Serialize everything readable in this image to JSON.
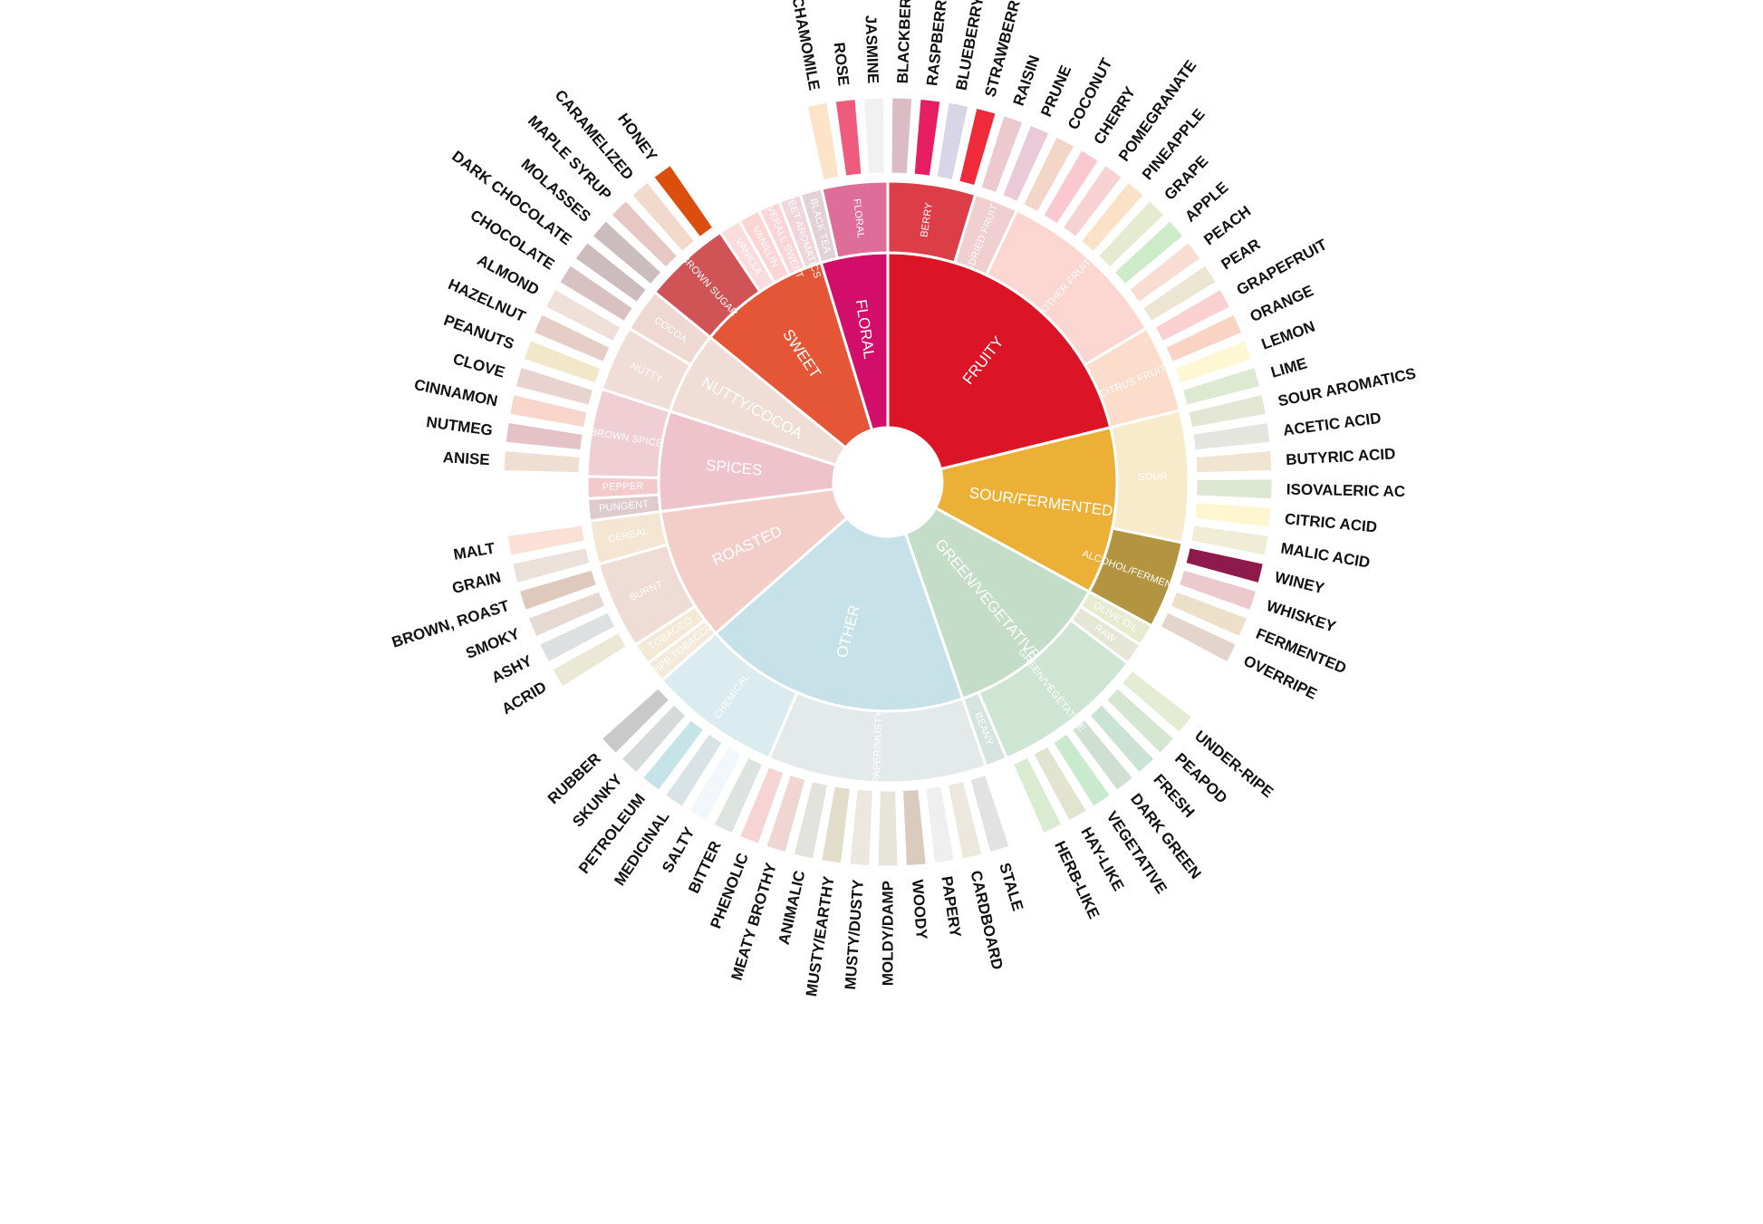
{
  "chart_data": {
    "type": "sunburst",
    "title": "",
    "categories": [
      {
        "name": "FRUITY",
        "color": "#dc1526",
        "children": [
          {
            "name": "BERRY",
            "color": "#dc3e47",
            "children": [
              {
                "name": "BLACKBERRY",
                "color": "#dcbcc4"
              },
              {
                "name": "RASPBERRY",
                "color": "#e71f62"
              },
              {
                "name": "BLUEBERRY",
                "color": "#d8d5e7"
              },
              {
                "name": "STRAWBERRY",
                "color": "#ef2a3a"
              }
            ]
          },
          {
            "name": "DRIED FRUIT",
            "color": "#f1ced0",
            "children": [
              {
                "name": "RAISIN",
                "color": "#ecc8cf"
              },
              {
                "name": "PRUNE",
                "color": "#e9cad6"
              }
            ]
          },
          {
            "name": "OTHER FRUIT",
            "color": "#fcd6d0",
            "children": [
              {
                "name": "COCONUT",
                "color": "#f3d6c8"
              },
              {
                "name": "CHERRY",
                "color": "#fbc8cf"
              },
              {
                "name": "POMEGRANATE",
                "color": "#f7d2d2"
              },
              {
                "name": "PINEAPPLE",
                "color": "#fbe2c6"
              },
              {
                "name": "GRAPE",
                "color": "#e5ebd0"
              },
              {
                "name": "APPLE",
                "color": "#cdebc8"
              },
              {
                "name": "PEACH",
                "color": "#f9ddd2"
              },
              {
                "name": "PEAR",
                "color": "#ebe5d2"
              }
            ]
          },
          {
            "name": "CITRUS FRUIT",
            "color": "#fcdccb",
            "children": [
              {
                "name": "GRAPEFRUIT",
                "color": "#fbd0d0"
              },
              {
                "name": "ORANGE",
                "color": "#f9d4c4"
              },
              {
                "name": "LEMON",
                "color": "#fdf7d3"
              },
              {
                "name": "LIME",
                "color": "#dde9d1"
              }
            ]
          }
        ]
      },
      {
        "name": "SOUR/FERMENTED",
        "color": "#ecb036",
        "children": [
          {
            "name": "SOUR",
            "color": "#f7ebcc",
            "children": [
              {
                "name": "SOUR AROMATICS",
                "color": "#e2e6d2"
              },
              {
                "name": "ACETIC ACID",
                "color": "#e4e5de"
              },
              {
                "name": "BUTYRIC ACID",
                "color": "#efe5d0"
              },
              {
                "name": "ISOVALERIC AC",
                "color": "#dde8d2"
              },
              {
                "name": "CITRIC ACID",
                "color": "#fdf6d0"
              },
              {
                "name": "MALIC ACID",
                "color": "#efedd5"
              }
            ]
          },
          {
            "name": "ALCOHOL/FERMENTED",
            "color": "#b29441",
            "children": [
              {
                "name": "WINEY",
                "color": "#8e1a4c"
              },
              {
                "name": "WHISKEY",
                "color": "#ecc9cd"
              },
              {
                "name": "FERMENTED",
                "color": "#ede0c9"
              },
              {
                "name": "OVERRIPE",
                "color": "#e3d5cb"
              }
            ]
          }
        ]
      },
      {
        "name": "GREEN/VEGETATIVE",
        "color": "#c4ddc8",
        "children": [
          {
            "name": "OLIVE OIL",
            "color": "#e5eccf",
            "children": []
          },
          {
            "name": "RAW",
            "color": "#e5e6d6",
            "children": []
          },
          {
            "name": "GREEN/VEGETATIVE",
            "color": "#cde5d2",
            "children": [
              {
                "name": "UNDER-RIPE",
                "color": "#e4ecd4"
              },
              {
                "name": "PEAPOD",
                "color": "#d4e6cf"
              },
              {
                "name": "FRESH",
                "color": "#cae3d4"
              },
              {
                "name": "DARK GREEN",
                "color": "#cfdfd2"
              },
              {
                "name": "VEGETATIVE",
                "color": "#c9eacd"
              },
              {
                "name": "HAY-LIKE",
                "color": "#e3e4d0"
              },
              {
                "name": "HERB-LIKE",
                "color": "#d9ecd1"
              }
            ]
          },
          {
            "name": "BEANY",
            "color": "#d6e4e0",
            "children": []
          }
        ]
      },
      {
        "name": "OTHER",
        "color": "#c6e2e8",
        "children": [
          {
            "name": "PAPER/MUSTY",
            "color": "#e4e9ea",
            "children": [
              {
                "name": "STALE",
                "color": "#e2e1e3"
              },
              {
                "name": "CARDBOARD",
                "color": "#ede8dd"
              },
              {
                "name": "PAPERY",
                "color": "#efefef"
              },
              {
                "name": "WOODY",
                "color": "#d9cbbe"
              },
              {
                "name": "MOLDY/DAMP",
                "color": "#e7e4db"
              },
              {
                "name": "MUSTY/DUSTY",
                "color": "#ede8df"
              },
              {
                "name": "MUSTY/EARTHY",
                "color": "#e2dccb"
              },
              {
                "name": "ANIMALIC",
                "color": "#e3e3dd"
              },
              {
                "name": "MEATY BROTHY",
                "color": "#f0d6d2"
              },
              {
                "name": "PHENOLIC",
                "color": "#f6d4d4"
              }
            ]
          },
          {
            "name": "CHEMICAL",
            "color": "#daecef",
            "children": [
              {
                "name": "BITTER",
                "color": "#dde3df"
              },
              {
                "name": "SALTY",
                "color": "#f1f7fa"
              },
              {
                "name": "MEDICINAL",
                "color": "#d9e2e4"
              },
              {
                "name": "PETROLEUM",
                "color": "#c6e3e8"
              },
              {
                "name": "SKUNKY",
                "color": "#d6dadb"
              },
              {
                "name": "RUBBER",
                "color": "#c9c9c9"
              }
            ]
          }
        ]
      },
      {
        "name": "ROASTED",
        "color": "#f3cdc8",
        "children": [
          {
            "name": "PIPE TOBACCO",
            "color": "#f4eadc",
            "children": []
          },
          {
            "name": "TOBACCO",
            "color": "#f4e9d4",
            "children": []
          },
          {
            "name": "BURNT",
            "color": "#efddd5",
            "children": [
              {
                "name": "ACRID",
                "color": "#ece8d6"
              },
              {
                "name": "ASHY",
                "color": "#dde0e0"
              },
              {
                "name": "SMOKY",
                "color": "#e6d9d1"
              },
              {
                "name": "BROWN, ROAST",
                "color": "#dfc8bc"
              }
            ]
          },
          {
            "name": "CEREAL",
            "color": "#f5e6d3",
            "children": [
              {
                "name": "GRAIN",
                "color": "#ebe1da"
              },
              {
                "name": "MALT",
                "color": "#fae0d6"
              }
            ]
          }
        ]
      },
      {
        "name": "SPICES",
        "color": "#eec3cb",
        "children": [
          {
            "name": "PUNGENT",
            "color": "#dfcace",
            "children": []
          },
          {
            "name": "PEPPER",
            "color": "#f4c9cb",
            "children": []
          },
          {
            "name": "BROWN SPICE",
            "color": "#efcfd4",
            "children": [
              {
                "name": "ANISE",
                "color": "#efdfd2"
              },
              {
                "name": "NUTMEG",
                "color": "#e4c2c7"
              },
              {
                "name": "CINNAMON",
                "color": "#f9d6cc"
              },
              {
                "name": "CLOVE",
                "color": "#e8d3d0"
              }
            ]
          }
        ]
      },
      {
        "name": "NUTTY/COCOA",
        "color": "#efddd6",
        "children": [
          {
            "name": "NUTTY",
            "color": "#f0ddd8",
            "children": [
              {
                "name": "PEANUTS",
                "color": "#f1e8c9"
              },
              {
                "name": "HAZELNUT",
                "color": "#e6cdc6"
              },
              {
                "name": "ALMOND",
                "color": "#efe1da"
              }
            ]
          },
          {
            "name": "COCOA",
            "color": "#efd8d2",
            "children": [
              {
                "name": "CHOCOLATE",
                "color": "#d9c1c1"
              },
              {
                "name": "DARK CHOCOLATE",
                "color": "#cdbcbe"
              }
            ]
          }
        ]
      },
      {
        "name": "SWEET",
        "color": "#e45636",
        "children": [
          {
            "name": "BROWN SUGAR",
            "color": "#d05456",
            "children": [
              {
                "name": "MOLASSES",
                "color": "#cbbcbe"
              },
              {
                "name": "MAPLE SYRUP",
                "color": "#e7c7c4"
              },
              {
                "name": "CARAMELIZED",
                "color": "#f1dacb"
              },
              {
                "name": "HONEY",
                "color": "#db4e0d"
              }
            ]
          },
          {
            "name": "VANILLA",
            "color": "#fbdcdc",
            "children": []
          },
          {
            "name": "VANILLIN",
            "color": "#fdd5d5",
            "children": []
          },
          {
            "name": "OVERALL SWEET",
            "color": "#fbd5d8",
            "children": []
          },
          {
            "name": "SWEET AROMATICS",
            "color": "#f0d5da",
            "children": []
          }
        ]
      },
      {
        "name": "FLORAL",
        "color": "#d30e6a",
        "children": [
          {
            "name": "BLACK TEA",
            "color": "#e2d1d6",
            "children": []
          },
          {
            "name": "FLORAL",
            "color": "#df6d9a",
            "children": [
              {
                "name": "CHAMOMILE",
                "color": "#fde3c7"
              },
              {
                "name": "ROSE",
                "color": "#ef5b7c"
              },
              {
                "name": "JASMINE",
                "color": "#f1f1f1"
              }
            ]
          }
        ]
      }
    ]
  }
}
